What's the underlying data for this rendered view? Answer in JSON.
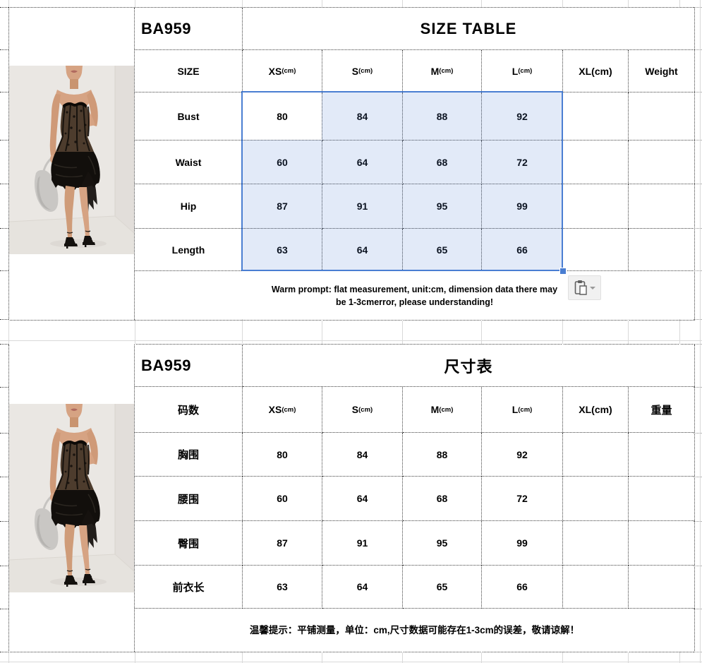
{
  "colors": {
    "selection_border": "#4a7ed2",
    "selection_fill": "#dce8f8",
    "grid_dotted": "#3f3f3f",
    "grid_faint": "#d9d9d9",
    "paste_button_bg": "#f1f1f1"
  },
  "icons": {
    "paste_options": "clipboard-icon",
    "paste_dropdown": "chevron-down-icon",
    "fill_handle": "selection-fill-handle"
  },
  "product_image": {
    "alt": "model wearing black strapless lace corset mini dress, holding silver bag, strappy heels"
  },
  "size_table_en": {
    "code": "BA959",
    "title": "SIZE TABLE",
    "size_label": "SIZE",
    "cols": [
      {
        "label": "XS",
        "unit": "(cm)"
      },
      {
        "label": "S",
        "unit": "(cm)"
      },
      {
        "label": "M",
        "unit": "(cm)"
      },
      {
        "label": "L",
        "unit": "(cm)"
      },
      {
        "label": "XL(cm)",
        "unit": ""
      },
      {
        "label": "Weight",
        "unit": ""
      }
    ],
    "rows": [
      {
        "label": "Bust",
        "values": [
          "80",
          "84",
          "88",
          "92",
          "",
          ""
        ]
      },
      {
        "label": "Waist",
        "values": [
          "60",
          "64",
          "68",
          "72",
          "",
          ""
        ]
      },
      {
        "label": "Hip",
        "values": [
          "87",
          "91",
          "95",
          "99",
          "",
          ""
        ]
      },
      {
        "label": "Length",
        "values": [
          "63",
          "64",
          "65",
          "66",
          "",
          ""
        ]
      }
    ],
    "note_line1": "Warm prompt: flat measurement, unit:cm, dimension data there may",
    "note_line2": "be 1-3cmerror, please understanding!"
  },
  "size_table_cn": {
    "code": "BA959",
    "title": "尺寸表",
    "size_label": "码数",
    "cols": [
      {
        "label": "XS",
        "unit": "(cm)"
      },
      {
        "label": "S",
        "unit": "(cm)"
      },
      {
        "label": "M",
        "unit": "(cm)"
      },
      {
        "label": "L",
        "unit": "(cm)"
      },
      {
        "label": "XL(cm)",
        "unit": ""
      },
      {
        "label": "重量",
        "unit": ""
      }
    ],
    "rows": [
      {
        "label": "胸围",
        "values": [
          "80",
          "84",
          "88",
          "92",
          "",
          ""
        ]
      },
      {
        "label": "腰围",
        "values": [
          "60",
          "64",
          "68",
          "72",
          "",
          ""
        ]
      },
      {
        "label": "臀围",
        "values": [
          "87",
          "91",
          "95",
          "99",
          "",
          ""
        ]
      },
      {
        "label": "前衣长",
        "values": [
          "63",
          "64",
          "65",
          "66",
          "",
          ""
        ]
      }
    ],
    "note_line1": "温馨提示：平铺测量，单位：cm,尺寸数据可能存在1-3cm的误差，敬请谅解！"
  },
  "chart_data": {
    "type": "table",
    "title": "SIZE TABLE / 尺寸表 (BA959)",
    "categories": [
      "XS(cm)",
      "S(cm)",
      "M(cm)",
      "L(cm)",
      "XL(cm)",
      "Weight"
    ],
    "series": [
      {
        "name": "Bust/胸围",
        "values": [
          80,
          84,
          88,
          92,
          null,
          null
        ]
      },
      {
        "name": "Waist/腰围",
        "values": [
          60,
          64,
          68,
          72,
          null,
          null
        ]
      },
      {
        "name": "Hip/臀围",
        "values": [
          87,
          91,
          95,
          99,
          null,
          null
        ]
      },
      {
        "name": "Length/前衣长",
        "values": [
          63,
          64,
          65,
          66,
          null,
          null
        ]
      }
    ]
  }
}
